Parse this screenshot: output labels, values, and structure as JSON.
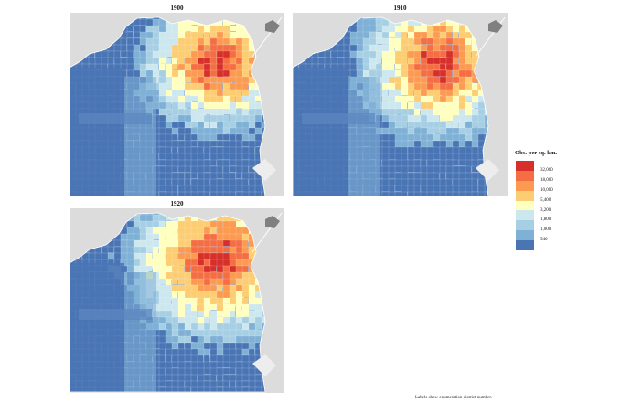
{
  "maps": [
    {
      "title": "1900",
      "intensity": 0.55
    },
    {
      "title": "1910",
      "intensity": 0.75
    },
    {
      "title": "1920",
      "intensity": 1.0
    }
  ],
  "legend": {
    "title": "Obs. per sq. km.",
    "colors": [
      "#d7302a",
      "#f46d43",
      "#fc9a52",
      "#fdcd73",
      "#ffffbf",
      "#cde7ef",
      "#a7cfe4",
      "#7fb0d6",
      "#4a75b5"
    ],
    "labels": [
      "32,000",
      "18,000",
      "10,000",
      "5,400",
      "3,200",
      "1,800",
      "1,000",
      "540"
    ]
  },
  "caption": "Labels show enumeration district number."
}
